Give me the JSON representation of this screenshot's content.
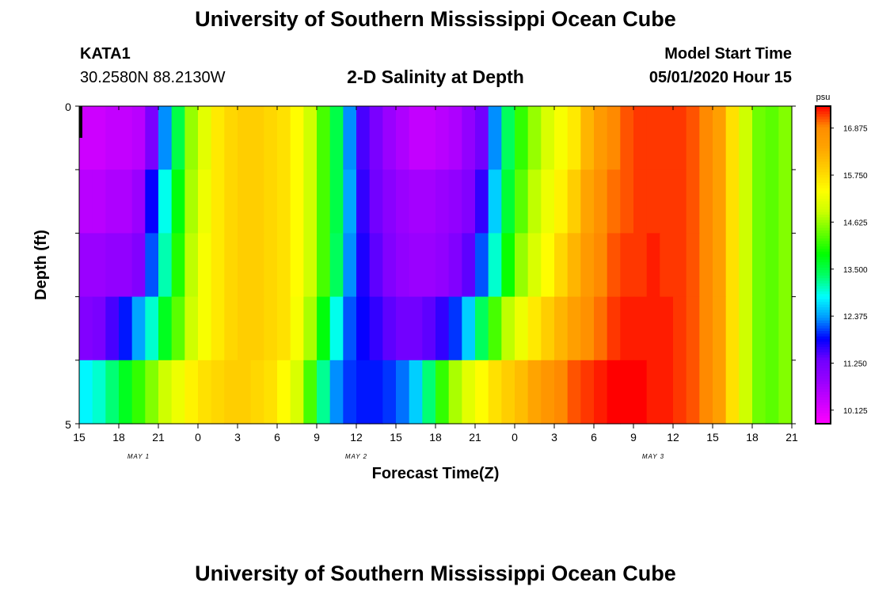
{
  "header": {
    "title_top": "University of Southern Mississippi Ocean Cube",
    "title_bottom": "University of Southern Mississippi Ocean Cube",
    "station_id": "KATA1",
    "coordinates": "30.2580N 88.2130W",
    "plot_title": "2-D Salinity at Depth",
    "model_start_label": "Model Start Time",
    "model_start_value": "05/01/2020 Hour 15"
  },
  "chart_data": {
    "type": "heatmap",
    "title": "2-D Salinity at Depth",
    "xlabel": "Forecast Time(Z)",
    "ylabel": "Depth (ft)",
    "colorbar_label": "psu",
    "x_ticks": [
      "15",
      "18",
      "21",
      "0",
      "3",
      "6",
      "9",
      "12",
      "15",
      "18",
      "21",
      "0",
      "3",
      "6",
      "9",
      "12",
      "15",
      "18",
      "21"
    ],
    "date_labels": [
      {
        "text": "MAY 1",
        "hour_index": 4.5
      },
      {
        "text": "MAY 2",
        "hour_index": 21
      },
      {
        "text": "MAY 3",
        "hour_index": 43.5
      }
    ],
    "y_ticks": [
      "0",
      "5"
    ],
    "y_range": [
      0,
      5
    ],
    "hours": 54,
    "colorbar_ticks": [
      "10.125",
      "11.250",
      "12.375",
      "13.500",
      "14.625",
      "15.750",
      "16.875"
    ],
    "colorbar_range": [
      9.8,
      17.4
    ],
    "palette": [
      "#ff00ff",
      "#cc00ff",
      "#9900ff",
      "#7000ff",
      "#0000ff",
      "#0099ff",
      "#00ffff",
      "#00ff66",
      "#00ff00",
      "#66ff00",
      "#ccff00",
      "#ffff00",
      "#ffd000",
      "#ffa500",
      "#ff8c00",
      "#ff0000"
    ],
    "depth_layers": [
      {
        "depth": "0-1 ft",
        "values": [
          10.3,
          10.3,
          10.4,
          10.4,
          10.5,
          11.2,
          12.3,
          13.5,
          14.6,
          15.1,
          15.6,
          15.8,
          15.9,
          15.9,
          15.8,
          15.7,
          15.4,
          14.9,
          14.2,
          13.5,
          12.3,
          11.5,
          11.2,
          10.8,
          10.6,
          10.4,
          10.4,
          10.5,
          10.6,
          10.9,
          11.3,
          12.3,
          13.4,
          14.1,
          14.6,
          15.0,
          15.3,
          15.6,
          16.2,
          16.6,
          16.9,
          17.1,
          17.2,
          17.2,
          17.2,
          17.2,
          17.1,
          16.9,
          16.5,
          15.7,
          14.9,
          14.4,
          14.3,
          14.5
        ]
      },
      {
        "depth": "1-2 ft",
        "values": [
          10.5,
          10.5,
          10.6,
          10.6,
          10.8,
          11.8,
          12.9,
          13.8,
          14.7,
          15.2,
          15.6,
          15.8,
          15.9,
          15.9,
          15.8,
          15.7,
          15.4,
          14.9,
          14.2,
          13.5,
          12.4,
          11.6,
          11.3,
          11.0,
          10.8,
          10.7,
          10.7,
          10.8,
          10.9,
          11.1,
          11.6,
          12.6,
          13.6,
          14.3,
          14.8,
          15.2,
          15.5,
          15.9,
          16.4,
          16.8,
          17.0,
          17.1,
          17.2,
          17.2,
          17.2,
          17.2,
          17.1,
          16.9,
          16.5,
          15.7,
          14.9,
          14.4,
          14.3,
          14.5
        ]
      },
      {
        "depth": "2-3 ft",
        "values": [
          10.8,
          10.8,
          10.9,
          10.9,
          11.1,
          12.1,
          13.1,
          14.0,
          14.8,
          15.3,
          15.6,
          15.8,
          15.9,
          15.9,
          15.8,
          15.7,
          15.4,
          14.9,
          14.2,
          13.4,
          12.3,
          11.7,
          11.4,
          11.1,
          10.9,
          10.8,
          10.8,
          10.9,
          11.1,
          11.4,
          12.1,
          13.0,
          13.9,
          14.6,
          15.0,
          15.4,
          15.8,
          16.2,
          16.6,
          16.9,
          17.1,
          17.2,
          17.2,
          17.3,
          17.2,
          17.2,
          17.1,
          16.9,
          16.5,
          15.7,
          14.9,
          14.4,
          14.3,
          14.5
        ]
      },
      {
        "depth": "3-4 ft",
        "values": [
          11.1,
          11.2,
          11.5,
          11.9,
          12.4,
          13.0,
          13.7,
          14.3,
          14.9,
          15.3,
          15.6,
          15.8,
          15.9,
          15.9,
          15.8,
          15.7,
          15.3,
          14.7,
          13.8,
          12.9,
          12.1,
          11.8,
          11.6,
          11.4,
          11.3,
          11.3,
          11.4,
          11.6,
          12.0,
          12.6,
          13.4,
          14.2,
          14.8,
          15.2,
          15.6,
          15.9,
          16.2,
          16.5,
          16.8,
          17.0,
          17.2,
          17.3,
          17.3,
          17.3,
          17.3,
          17.2,
          17.1,
          16.9,
          16.5,
          15.7,
          14.9,
          14.4,
          14.3,
          14.5
        ]
      },
      {
        "depth": "4-5 ft",
        "values": [
          12.8,
          13.0,
          13.3,
          13.7,
          14.1,
          14.5,
          14.9,
          15.2,
          15.5,
          15.7,
          15.8,
          15.9,
          15.9,
          15.8,
          15.7,
          15.4,
          15.0,
          14.2,
          13.2,
          12.3,
          12.0,
          11.9,
          11.9,
          12.0,
          12.2,
          12.6,
          13.3,
          14.1,
          14.7,
          15.1,
          15.4,
          15.7,
          15.9,
          16.1,
          16.4,
          16.7,
          16.9,
          17.1,
          17.2,
          17.3,
          17.4,
          17.4,
          17.4,
          17.3,
          17.3,
          17.2,
          17.1,
          16.9,
          16.5,
          15.7,
          14.9,
          14.4,
          14.3,
          14.5
        ]
      }
    ]
  }
}
